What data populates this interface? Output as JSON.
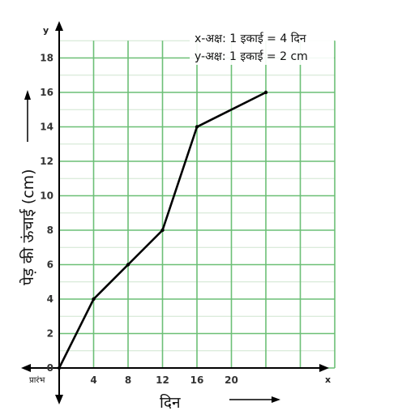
{
  "chart_data": {
    "type": "line",
    "x": [
      0,
      4,
      8,
      12,
      16,
      24
    ],
    "y": [
      0,
      4,
      6,
      8,
      14,
      16
    ],
    "x_tick_labels": [
      "4",
      "8",
      "12",
      "16",
      "20"
    ],
    "x_tick_values": [
      4,
      8,
      12,
      16,
      20
    ],
    "y_tick_values": [
      0,
      2,
      4,
      6,
      8,
      10,
      12,
      14,
      16,
      18
    ],
    "xlim": [
      0,
      32
    ],
    "ylim": [
      0,
      19
    ],
    "x_axis_letter": "x",
    "y_axis_letter": "y",
    "start_label": "प्रारंभ",
    "xlabel": "दिन",
    "ylabel": "पेड़ की ऊंचाई (cm)",
    "legend": [
      "x-अक्ष: 1 इकाई = 4 दिन",
      "y-अक्ष: 1 इकाई = 2 cm"
    ],
    "legend_position": "top-right",
    "grid": true,
    "colors": {
      "grid_major": "#6cbf76",
      "grid_minor": "#cfe6cf",
      "line": "#000000",
      "axis": "#000000"
    }
  }
}
